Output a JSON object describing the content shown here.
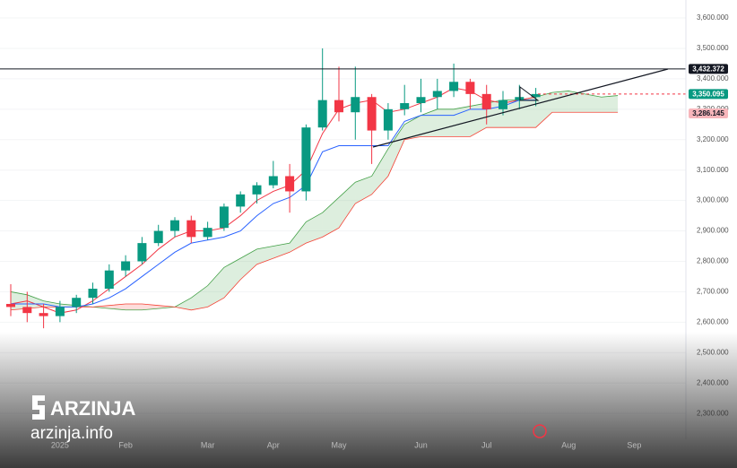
{
  "chart_data": {
    "type": "candlestick",
    "categories": [
      null,
      null,
      null,
      "2025",
      null,
      null,
      null,
      "Feb",
      null,
      null,
      null,
      null,
      "Mar",
      null,
      null,
      null,
      "Apr",
      null,
      null,
      null,
      "May",
      null,
      null,
      null,
      null,
      "Jun",
      null,
      null,
      null,
      "Jul",
      null,
      null,
      null,
      null,
      "Aug",
      null,
      null,
      null,
      "Sep",
      null
    ],
    "open": [
      2660,
      2650,
      2630,
      2620,
      2650,
      2680,
      2710,
      2770,
      2800,
      2860,
      2900,
      2935,
      2880,
      2910,
      2980,
      3020,
      3050,
      3080,
      3030,
      3240,
      3330,
      3290,
      3340,
      3230,
      3300,
      3320,
      3340,
      3360,
      3390,
      3350,
      3300,
      3330,
      3340,
      null,
      null,
      null,
      null,
      null,
      null,
      null
    ],
    "high": [
      2725,
      2700,
      2660,
      2670,
      2690,
      2730,
      2790,
      2820,
      2880,
      2920,
      2945,
      2950,
      2930,
      2990,
      3030,
      3060,
      3130,
      3120,
      3250,
      3500,
      3440,
      3440,
      3350,
      3320,
      3380,
      3400,
      3400,
      3450,
      3400,
      3380,
      3360,
      3380,
      3370,
      null,
      null,
      null,
      null,
      null,
      null,
      null
    ],
    "low": [
      2620,
      2600,
      2580,
      2600,
      2630,
      2660,
      2700,
      2750,
      2790,
      2850,
      2880,
      2860,
      2870,
      2900,
      2960,
      2990,
      3040,
      2960,
      3000,
      3230,
      3260,
      3200,
      3120,
      3200,
      3280,
      3290,
      3300,
      3340,
      3300,
      3250,
      3280,
      3300,
      3310,
      null,
      null,
      null,
      null,
      null,
      null,
      null
    ],
    "close": [
      2650,
      2630,
      2620,
      2650,
      2680,
      2710,
      2770,
      2800,
      2860,
      2900,
      2935,
      2880,
      2910,
      2980,
      3020,
      3050,
      3080,
      3030,
      3240,
      3330,
      3290,
      3340,
      3230,
      3300,
      3320,
      3340,
      3360,
      3390,
      3350,
      3300,
      3330,
      3340,
      3350,
      null,
      null,
      null,
      null,
      null,
      null,
      null
    ],
    "up_color": "#089981",
    "down_color": "#f23645",
    "lines": [
      {
        "color": "#f23645",
        "values": [
          2660,
          2670,
          2650,
          2630,
          2640,
          2670,
          2710,
          2750,
          2790,
          2840,
          2880,
          2900,
          2900,
          2910,
          2950,
          3000,
          3030,
          3050,
          3100,
          3220,
          3300,
          3320,
          3330,
          3290,
          3300,
          3320,
          3340,
          3370,
          3360,
          3330,
          3320,
          3330,
          3340,
          null,
          null,
          null,
          null,
          null,
          null,
          null
        ]
      },
      {
        "color": "#2962ff",
        "values": [
          2660,
          2660,
          2660,
          2650,
          2650,
          2660,
          2680,
          2710,
          2750,
          2790,
          2830,
          2860,
          2870,
          2880,
          2900,
          2950,
          2990,
          3010,
          3050,
          3160,
          3180,
          3180,
          3180,
          3180,
          3260,
          3280,
          3280,
          3280,
          3300,
          3300,
          3310,
          3330,
          3330,
          null,
          null,
          null,
          null,
          null,
          null,
          null
        ]
      }
    ],
    "cloud": {
      "up_color": "#43a047",
      "down_color": "#f44336",
      "span_a": [
        2700,
        2690,
        2670,
        2660,
        2655,
        2650,
        2645,
        2640,
        2640,
        2645,
        2650,
        2680,
        2720,
        2780,
        2810,
        2840,
        2850,
        2860,
        2930,
        2960,
        3010,
        3060,
        3080,
        3170,
        3250,
        3280,
        3300,
        3300,
        3310,
        3320,
        3330,
        3330,
        3340,
        3355,
        3360,
        3350,
        3340,
        3345,
        null,
        null
      ],
      "span_b": [
        2640,
        2645,
        2650,
        2650,
        2650,
        2650,
        2655,
        2660,
        2660,
        2655,
        2650,
        2640,
        2650,
        2680,
        2740,
        2790,
        2810,
        2830,
        2860,
        2880,
        2910,
        2990,
        3020,
        3080,
        3200,
        3210,
        3210,
        3210,
        3210,
        3240,
        3240,
        3240,
        3240,
        3290,
        3290,
        3290,
        3290,
        3290,
        null,
        null
      ]
    },
    "ylim": [
      2215,
      3659
    ],
    "yticks": [
      {
        "value": 3600,
        "label": "3,600.000"
      },
      {
        "value": 3500,
        "label": "3,500.000"
      },
      {
        "value": 3400,
        "label": "3,400.000"
      },
      {
        "value": 3300,
        "label": "3,300.000"
      },
      {
        "value": 3200,
        "label": "3,200.000"
      },
      {
        "value": 3100,
        "label": "3,100.000"
      },
      {
        "value": 3000,
        "label": "3,000.000"
      },
      {
        "value": 2900,
        "label": "2,900.000"
      },
      {
        "value": 2800,
        "label": "2,800.000"
      },
      {
        "value": 2700,
        "label": "2,700.000"
      },
      {
        "value": 2600,
        "label": "2,600.000"
      },
      {
        "value": 2500,
        "label": "2,500.000"
      },
      {
        "value": 2400,
        "label": "2,400.000"
      },
      {
        "value": 2300,
        "label": "2,300.000"
      }
    ],
    "price_lines": [
      {
        "value": 3432.372,
        "label": "3,432.372",
        "color": "#131722",
        "style": "solid"
      },
      {
        "value": 3350.095,
        "label": "3,350.095",
        "color": "#089981",
        "style": "dashed"
      },
      {
        "value": 3286.145,
        "label": "3,286.145",
        "color": "#f7b6bb",
        "style": "none"
      }
    ]
  },
  "watermark": {
    "brand": "ARZINJA",
    "site": "arzinja.info"
  }
}
